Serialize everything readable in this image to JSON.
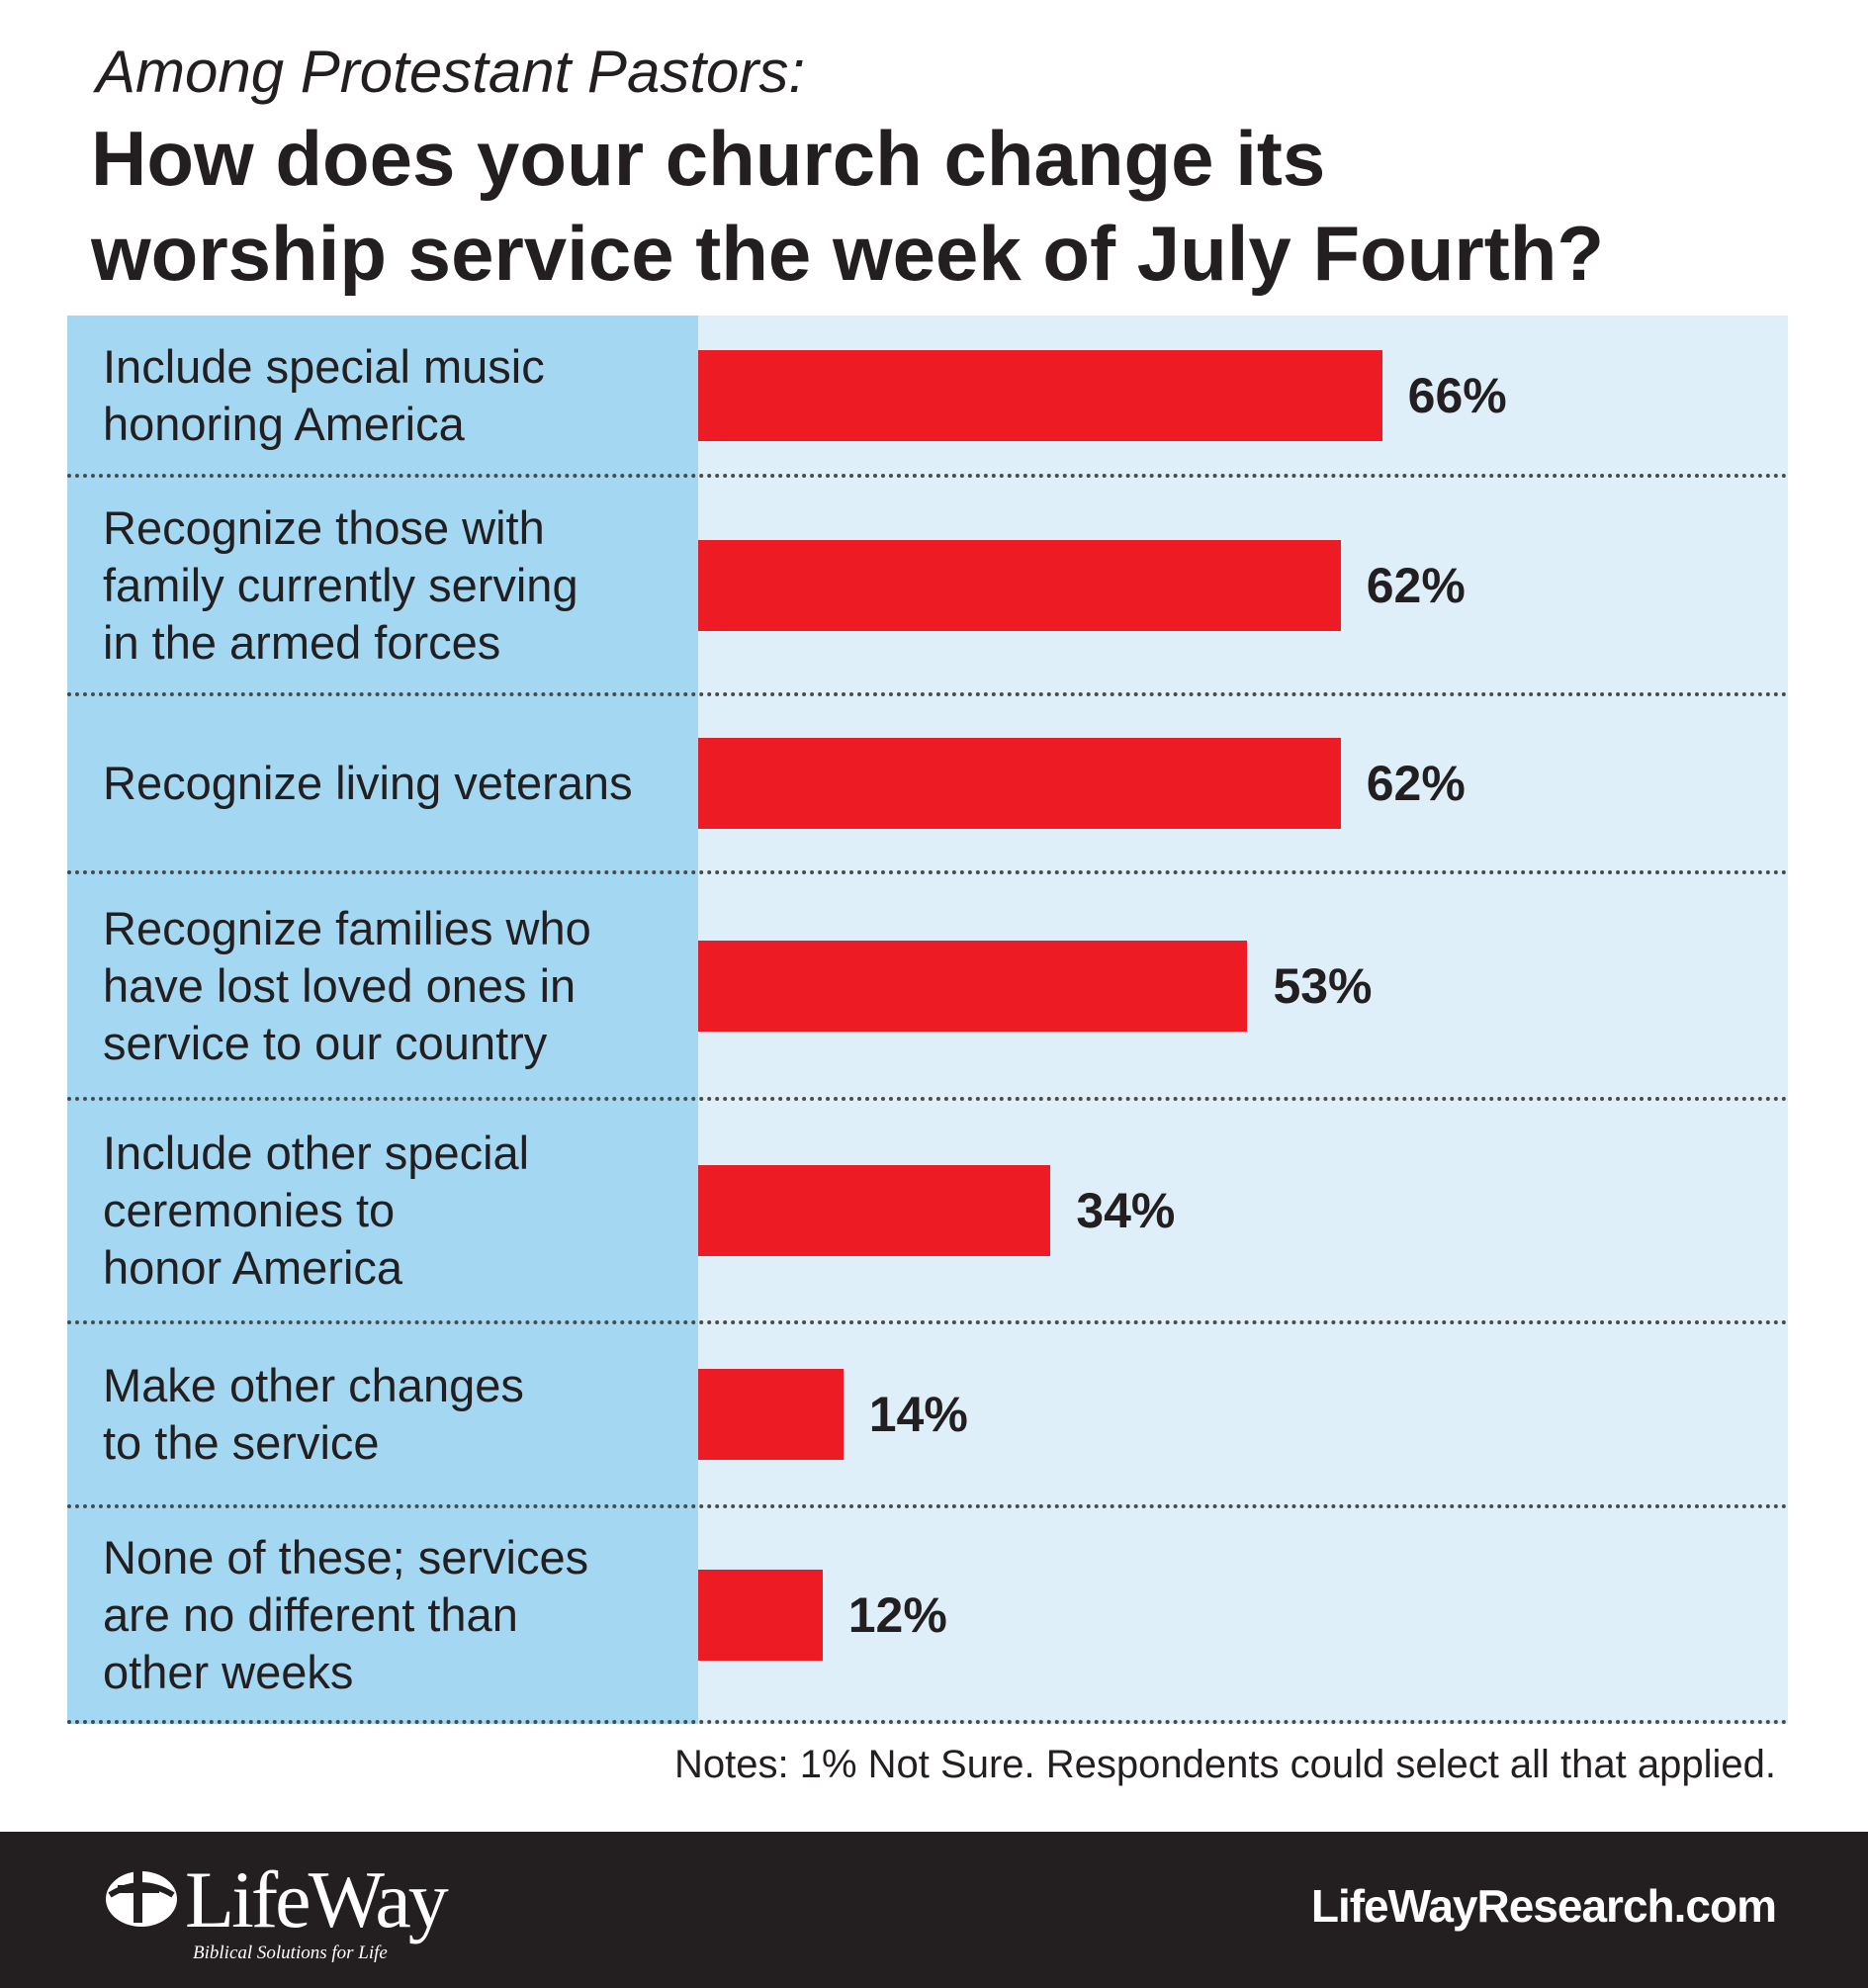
{
  "header": {
    "subtitle": "Among Protestant Pastors:",
    "title_line1": "How does your church change its",
    "title_line2": "worship service the week of July Fourth?"
  },
  "chart_data": {
    "type": "bar",
    "orientation": "horizontal",
    "subtitle": "Among Protestant Pastors:",
    "title": "How does your church change its worship service the week of July Fourth?",
    "categories": [
      "Include special music\nhonoring America",
      "Recognize those with\nfamily currently serving\nin the armed forces",
      "Recognize living veterans",
      "Recognize families who\nhave lost loved ones in\nservice to our country",
      "Include other special\nceremonies to\nhonor America",
      "Make other changes\nto the service",
      "None of these; services\nare no different than\nother weeks"
    ],
    "values": [
      66,
      62,
      62,
      53,
      34,
      14,
      12
    ],
    "value_labels": [
      "66%",
      "62%",
      "62%",
      "53%",
      "34%",
      "14%",
      "12%"
    ],
    "unit": "%",
    "xlim": [
      0,
      100
    ],
    "bar_color": "#ed1c24",
    "grid": false,
    "legend": "none"
  },
  "notes": "Notes: 1% Not Sure. Respondents could select all that applied.",
  "footer": {
    "logo_text": "LifeWay",
    "logo_tagline": "Biblical Solutions for Life",
    "website": "LifeWayResearch.com"
  },
  "colors": {
    "bar": "#ed1c24",
    "label_column": "#a4d8f2",
    "plot_background": "#dfeff9",
    "footer_background": "#231f20",
    "text": "#231f20"
  }
}
